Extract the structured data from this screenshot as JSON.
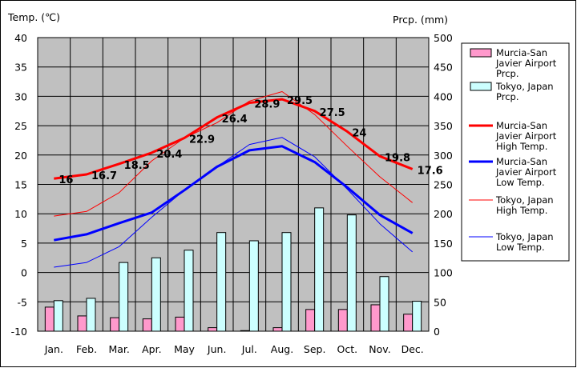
{
  "chart_data": {
    "type": "bar+line",
    "categories": [
      "Jan.",
      "Feb.",
      "Mar.",
      "Apr.",
      "May",
      "Jun.",
      "Jul.",
      "Aug.",
      "Sep.",
      "Oct.",
      "Nov.",
      "Dec."
    ],
    "left_axis": {
      "title": "Temp. (℃)",
      "ylim": [
        -10,
        40
      ],
      "ticks": [
        -10,
        -5,
        0,
        5,
        10,
        15,
        20,
        25,
        30,
        35,
        40
      ]
    },
    "right_axis": {
      "title": "Prcp. (mm)",
      "ylim": [
        0,
        500
      ],
      "ticks": [
        0,
        50,
        100,
        150,
        200,
        250,
        300,
        350,
        400,
        450,
        500
      ]
    },
    "precipitation": [
      {
        "name": "Murcia-San Javier Airport Prcp.",
        "legend_lines": [
          "Murcia-San",
          "Javier Airport",
          "Prcp."
        ],
        "color": "#ff99cc",
        "values": [
          41,
          26,
          23,
          21,
          24,
          6,
          1,
          6,
          37,
          37,
          45,
          29
        ]
      },
      {
        "name": "Tokyo, Japan Prcp.",
        "legend_lines": [
          "Tokyo, Japan",
          "Prcp."
        ],
        "color": "#ccffff",
        "values": [
          52,
          56,
          117,
          125,
          138,
          168,
          154,
          168,
          210,
          198,
          93,
          51
        ]
      }
    ],
    "temperature": [
      {
        "name": "Murcia-San Javier Airport High Temp.",
        "legend_lines": [
          "Murcia-San",
          "Javier Airport",
          "High Temp."
        ],
        "color": "#ff0000",
        "width": 3,
        "values": [
          16,
          16.7,
          18.5,
          20.4,
          22.9,
          26.4,
          28.9,
          29.5,
          27.5,
          24,
          19.8,
          17.6
        ],
        "labels": [
          "16",
          "16.7",
          "18.5",
          "20.4",
          "22.9",
          "26.4",
          "28.9",
          "29.5",
          "27.5",
          "24",
          "19.8",
          "17.6"
        ]
      },
      {
        "name": "Murcia-San Javier Airport Low Temp.",
        "legend_lines": [
          "Murcia-San",
          "Javier Airport",
          "Low Temp."
        ],
        "color": "#0000ff",
        "width": 3,
        "values": [
          5.5,
          6.5,
          8.4,
          10.2,
          14,
          18,
          20.8,
          21.5,
          18.8,
          14.5,
          9.8,
          6.7
        ]
      },
      {
        "name": "Tokyo, Japan High Temp.",
        "legend_lines": [
          "Tokyo, Japan",
          "High Temp."
        ],
        "color": "#ff0000",
        "width": 1,
        "values": [
          9.6,
          10.4,
          13.6,
          19,
          22.9,
          25.5,
          29.2,
          30.8,
          26.9,
          21.5,
          16.3,
          11.9
        ]
      },
      {
        "name": "Tokyo, Japan Low Temp.",
        "legend_lines": [
          "Tokyo, Japan",
          "Low Temp."
        ],
        "color": "#0000ff",
        "width": 1,
        "values": [
          0.9,
          1.7,
          4.4,
          9.4,
          14,
          18,
          21.8,
          23,
          19.7,
          14.2,
          8.3,
          3.5
        ]
      }
    ],
    "plot_background": "#c0c0c0",
    "grid": true,
    "legend_position": "right"
  }
}
